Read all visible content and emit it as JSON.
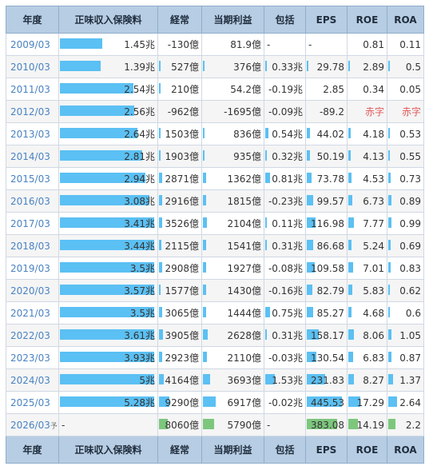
{
  "headers": [
    "年度",
    "正味収入保険料",
    "経常",
    "当期利益",
    "包括",
    "EPS",
    "ROE",
    "ROA"
  ],
  "rows": [
    {
      "year": "2009/03",
      "premium": "1.45兆",
      "premium_frac": 0.45,
      "ordinary": "-130億",
      "ordinary_frac": 0,
      "net": "81.9億",
      "net_frac": 0,
      "comp": "-",
      "comp_frac": 0,
      "eps": "-",
      "eps_frac": 0,
      "roe": "0.81",
      "roe_frac": 0,
      "roa": "0.11",
      "roa_frac": 0
    },
    {
      "year": "2010/03",
      "premium": "1.39兆",
      "premium_frac": 0.43,
      "ordinary": "527億",
      "ordinary_frac": 0.03,
      "net": "376億",
      "net_frac": 0.03,
      "comp": "0.33兆",
      "comp_frac": 0.03,
      "eps": "29.78",
      "eps_frac": 0.03,
      "roe": "2.89",
      "roe_frac": 0.03,
      "roa": "0.5",
      "roa_frac": 0.03
    },
    {
      "year": "2011/03",
      "premium": "2.54兆",
      "premium_frac": 0.78,
      "ordinary": "210億",
      "ordinary_frac": 0.02,
      "net": "54.2億",
      "net_frac": 0,
      "comp": "-0.19兆",
      "comp_frac": 0,
      "eps": "2.85",
      "eps_frac": 0,
      "roe": "0.34",
      "roe_frac": 0,
      "roa": "0.05",
      "roa_frac": 0
    },
    {
      "year": "2012/03",
      "premium": "2.56兆",
      "premium_frac": 0.79,
      "ordinary": "-962億",
      "ordinary_frac": 0,
      "net": "-1695億",
      "net_frac": 0,
      "comp": "-0.09兆",
      "comp_frac": 0,
      "eps": "-89.2",
      "eps_frac": 0,
      "roe": "赤字",
      "roe_frac": 0,
      "roa": "赤字",
      "roa_frac": 0
    },
    {
      "year": "2013/03",
      "premium": "2.64兆",
      "premium_frac": 0.82,
      "ordinary": "1503億",
      "ordinary_frac": 0.05,
      "net": "836億",
      "net_frac": 0.03,
      "comp": "0.54兆",
      "comp_frac": 0.09,
      "eps": "44.02",
      "eps_frac": 0.08,
      "roe": "4.18",
      "roe_frac": 0.07,
      "roa": "0.53",
      "roa_frac": 0.05
    },
    {
      "year": "2014/03",
      "premium": "2.81兆",
      "premium_frac": 0.87,
      "ordinary": "1903億",
      "ordinary_frac": 0.05,
      "net": "935億",
      "net_frac": 0.03,
      "comp": "0.32兆",
      "comp_frac": 0.05,
      "eps": "50.19",
      "eps_frac": 0.09,
      "roe": "4.13",
      "roe_frac": 0.07,
      "roa": "0.55",
      "roa_frac": 0.05
    },
    {
      "year": "2015/03",
      "premium": "2.94兆",
      "premium_frac": 0.91,
      "ordinary": "2871億",
      "ordinary_frac": 0.08,
      "net": "1362億",
      "net_frac": 0.05,
      "comp": "0.81兆",
      "comp_frac": 0.14,
      "eps": "73.78",
      "eps_frac": 0.13,
      "roe": "4.53",
      "roe_frac": 0.08,
      "roa": "0.73",
      "roa_frac": 0.07
    },
    {
      "year": "2016/03",
      "premium": "3.08兆",
      "premium_frac": 0.95,
      "ordinary": "2916億",
      "ordinary_frac": 0.08,
      "net": "1815億",
      "net_frac": 0.06,
      "comp": "-0.23兆",
      "comp_frac": 0,
      "eps": "99.57",
      "eps_frac": 0.18,
      "roe": "6.73",
      "roe_frac": 0.12,
      "roa": "0.89",
      "roa_frac": 0.09
    },
    {
      "year": "2017/03",
      "premium": "3.41兆",
      "premium_frac": 1.0,
      "ordinary": "3526億",
      "ordinary_frac": 0.09,
      "net": "2104億",
      "net_frac": 0.07,
      "comp": "0.11兆",
      "comp_frac": 0.02,
      "eps": "116.98",
      "eps_frac": 0.23,
      "roe": "7.77",
      "roe_frac": 0.15,
      "roa": "0.99",
      "roa_frac": 0.1
    },
    {
      "year": "2018/03",
      "premium": "3.44兆",
      "premium_frac": 1.0,
      "ordinary": "2115億",
      "ordinary_frac": 0.06,
      "net": "1541億",
      "net_frac": 0.05,
      "comp": "0.31兆",
      "comp_frac": 0.05,
      "eps": "86.68",
      "eps_frac": 0.17,
      "roe": "5.24",
      "roe_frac": 0.1,
      "roa": "0.69",
      "roa_frac": 0.07
    },
    {
      "year": "2019/03",
      "premium": "3.5兆",
      "premium_frac": 1.0,
      "ordinary": "2908億",
      "ordinary_frac": 0.08,
      "net": "1927億",
      "net_frac": 0.06,
      "comp": "-0.08兆",
      "comp_frac": 0,
      "eps": "109.58",
      "eps_frac": 0.22,
      "roe": "7.01",
      "roe_frac": 0.13,
      "roa": "0.83",
      "roa_frac": 0.08
    },
    {
      "year": "2020/03",
      "premium": "3.57兆",
      "premium_frac": 1.0,
      "ordinary": "1577億",
      "ordinary_frac": 0.04,
      "net": "1430億",
      "net_frac": 0.05,
      "comp": "-0.16兆",
      "comp_frac": 0,
      "eps": "82.79",
      "eps_frac": 0.16,
      "roe": "5.83",
      "roe_frac": 0.11,
      "roa": "0.62",
      "roa_frac": 0.06
    },
    {
      "year": "2021/03",
      "premium": "3.5兆",
      "premium_frac": 1.0,
      "ordinary": "3065億",
      "ordinary_frac": 0.08,
      "net": "1444億",
      "net_frac": 0.05,
      "comp": "0.75兆",
      "comp_frac": 0.13,
      "eps": "85.27",
      "eps_frac": 0.17,
      "roe": "4.68",
      "roe_frac": 0.09,
      "roa": "0.6",
      "roa_frac": 0.06
    },
    {
      "year": "2022/03",
      "premium": "3.61兆",
      "premium_frac": 1.0,
      "ordinary": "3905億",
      "ordinary_frac": 0.11,
      "net": "2628億",
      "net_frac": 0.09,
      "comp": "0.31兆",
      "comp_frac": 0.05,
      "eps": "158.17",
      "eps_frac": 0.33,
      "roe": "8.06",
      "roe_frac": 0.16,
      "roa": "1.05",
      "roa_frac": 0.11
    },
    {
      "year": "2023/03",
      "premium": "3.93兆",
      "premium_frac": 1.0,
      "ordinary": "2923億",
      "ordinary_frac": 0.08,
      "net": "2110億",
      "net_frac": 0.07,
      "comp": "-0.03兆",
      "comp_frac": 0,
      "eps": "130.54",
      "eps_frac": 0.27,
      "roe": "6.83",
      "roe_frac": 0.13,
      "roa": "0.87",
      "roa_frac": 0.09
    },
    {
      "year": "2024/03",
      "premium": "5兆",
      "premium_frac": 1.0,
      "ordinary": "4164億",
      "ordinary_frac": 0.12,
      "net": "3693億",
      "net_frac": 0.12,
      "comp": "1.53兆",
      "comp_frac": 0.26,
      "eps": "231.83",
      "eps_frac": 0.49,
      "roe": "8.27",
      "roe_frac": 0.16,
      "roa": "1.37",
      "roa_frac": 0.14
    },
    {
      "year": "2025/03",
      "premium": "5.28兆",
      "premium_frac": 1.0,
      "ordinary": "9290億",
      "ordinary_frac": 0.26,
      "net": "6917億",
      "net_frac": 0.22,
      "comp": "-0.02兆",
      "comp_frac": 0,
      "eps": "445.53",
      "eps_frac": 0.95,
      "roe": "17.29",
      "roe_frac": 0.35,
      "roa": "2.64",
      "roa_frac": 0.27
    }
  ],
  "forecast": {
    "year": "2026/03",
    "year_suffix": "予",
    "premium": "-",
    "ordinary": "8060億",
    "ordinary_frac": 0.22,
    "net": "5790億",
    "net_frac": 0.19,
    "comp": "-",
    "eps": "383.08",
    "eps_frac": 0.82,
    "roe": "14.19",
    "roe_frac": 0.28,
    "roa": "2.2",
    "roa_frac": 0.22
  }
}
